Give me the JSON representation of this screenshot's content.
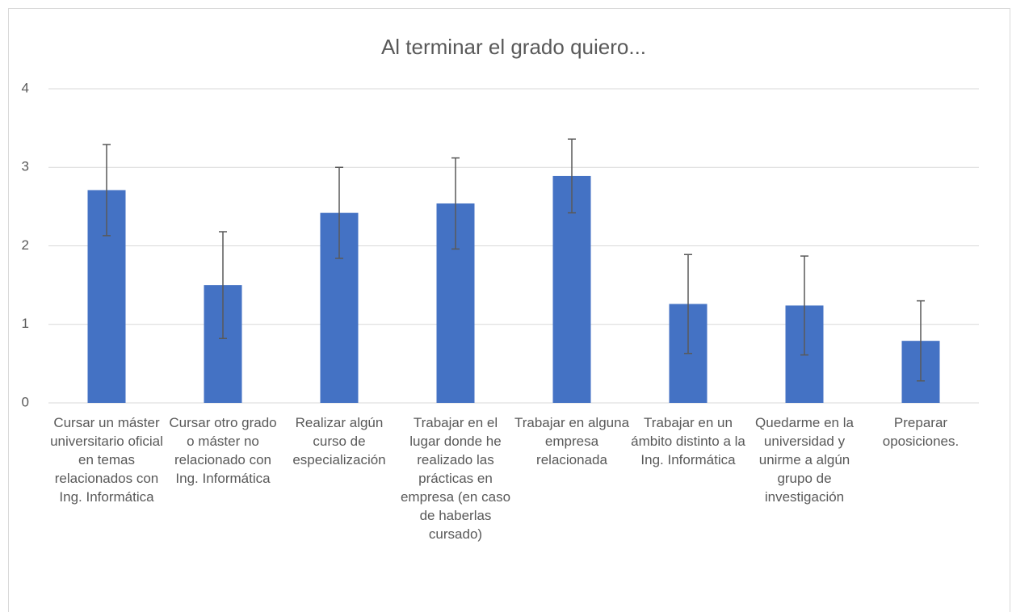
{
  "chart_data": {
    "type": "bar",
    "title": "Al terminar el grado quiero...",
    "categories": [
      "Cursar un máster universitario oficial en temas relacionados con Ing. Informática",
      "Cursar otro grado o máster no relacionado con Ing. Informática",
      "Realizar algún curso de especialización",
      "Trabajar en el lugar donde he realizado las prácticas en empresa (en caso de haberlas cursado)",
      "Trabajar en alguna empresa relacionada",
      "Trabajar en un ámbito distinto a la Ing. Informática",
      "Quedarme en la universidad y unirme a algún grupo de investigación",
      "Preparar oposiciones."
    ],
    "values": [
      2.71,
      1.5,
      2.42,
      2.54,
      2.89,
      1.26,
      1.24,
      0.79
    ],
    "errors": [
      0.58,
      0.68,
      0.58,
      0.58,
      0.47,
      0.63,
      0.63,
      0.51
    ],
    "color": "#4472c4",
    "error_color": "#595959",
    "ylim": [
      0,
      4
    ],
    "yticks": [
      0,
      1,
      2,
      3,
      4
    ],
    "grid": true
  }
}
